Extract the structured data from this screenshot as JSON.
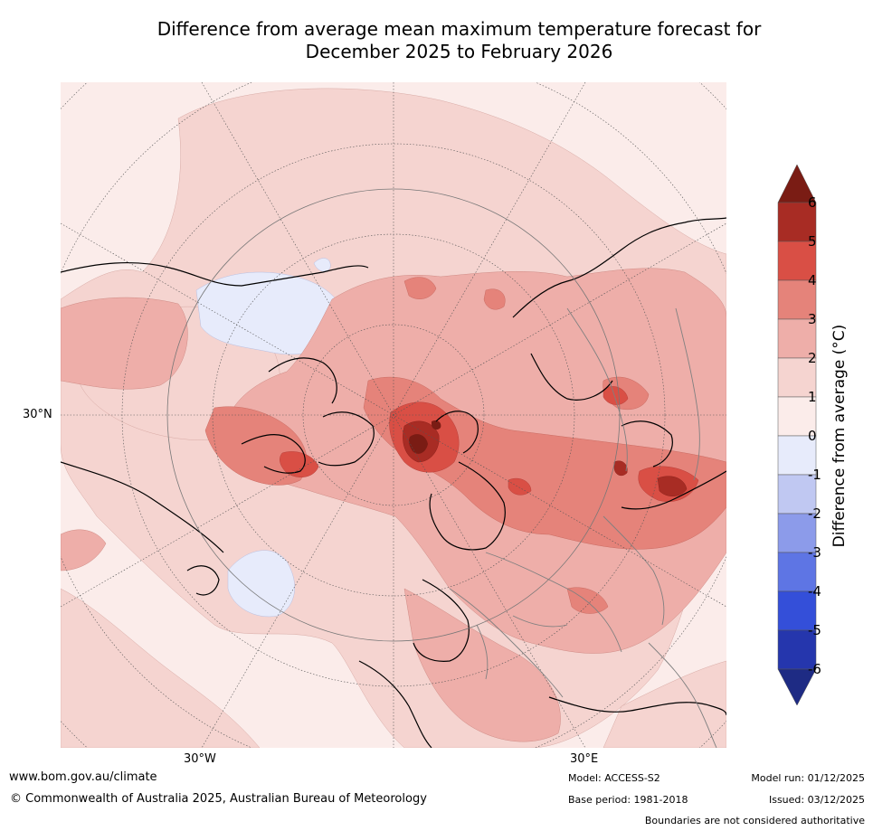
{
  "title_line1": "Difference from average mean maximum temperature forecast for",
  "title_line2": "December 2025 to February 2026",
  "axis_labels": {
    "lat": "30°N",
    "lon_west": "30°W",
    "lon_east": "30°E"
  },
  "colorbar": {
    "label": "Difference from average (°C)",
    "ticks": [
      "6",
      "5",
      "4",
      "3",
      "2",
      "1",
      "0",
      "-1",
      "-2",
      "-3",
      "-4",
      "-5",
      "-6"
    ],
    "colors": {
      "over": "#7a1c14",
      "c5_6": "#a82c24",
      "c4_5": "#d94f45",
      "c3_4": "#e5837a",
      "c2_3": "#eeaea9",
      "c1_2": "#f5d4d0",
      "c0_1": "#fbecea",
      "cm1_0": "#e7ebfb",
      "cm2_m1": "#c0c8f2",
      "cm3_m2": "#8c9bea",
      "cm4_m3": "#5e75e4",
      "cm5_m4": "#344fd9",
      "cm6_m5": "#2536ad",
      "under": "#1e2b84"
    }
  },
  "footer": {
    "website": "www.bom.gov.au/climate",
    "copyright": "© Commonwealth of Australia 2025, Australian Bureau of Meteorology",
    "model": "Model: ACCESS-S2",
    "base_period": "Base period: 1981-2018",
    "model_run": "Model run: 01/12/2025",
    "issued": "Issued: 03/12/2025",
    "disclaimer": "Boundaries are not considered authoritative"
  }
}
